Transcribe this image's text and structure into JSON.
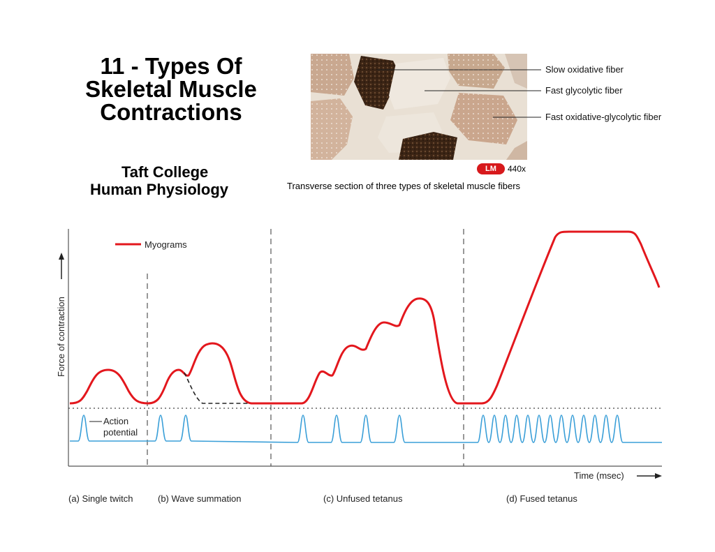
{
  "slide": {
    "title_lines": [
      "11 - Types Of",
      "Skeletal Muscle",
      "Contractions"
    ],
    "subtitle_1": "Taft College",
    "subtitle_2": "Human Physiology"
  },
  "micrograph": {
    "labels": [
      "Slow oxidative fiber",
      "Fast glycolytic fiber",
      "Fast oxidative-glycolytic fiber"
    ],
    "badge": "LM",
    "magnification": "440x",
    "caption": "Transverse section of three types of skeletal muscle fibers"
  },
  "graph": {
    "legend": "Myograms",
    "y_axis_label": "Force of contraction",
    "action_potential_label_1": "Action",
    "action_potential_label_2": "potential",
    "x_axis_label": "Time (msec)",
    "panels": [
      "(a) Single twitch",
      "(b) Wave summation",
      "(c) Unfused tetanus",
      "(d) Fused tetanus"
    ],
    "colors": {
      "myogram": "#e3171d",
      "action_potential": "#3a9fd8",
      "axis": "#555555"
    }
  }
}
